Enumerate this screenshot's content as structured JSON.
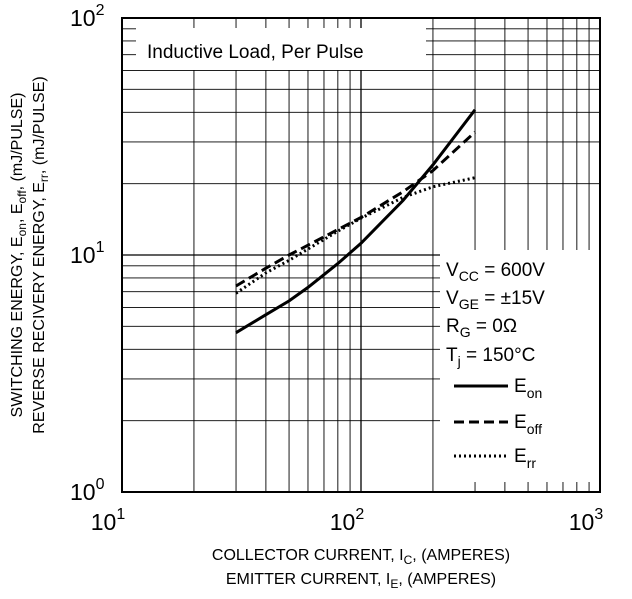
{
  "chart_data": {
    "type": "line",
    "xscale": "log",
    "yscale": "log",
    "xlim": [
      10,
      1000
    ],
    "ylim": [
      1,
      100
    ],
    "grid": true,
    "x_ticks": [
      {
        "base": "10",
        "exp": "1"
      },
      {
        "base": "10",
        "exp": "2"
      },
      {
        "base": "10",
        "exp": "3"
      }
    ],
    "y_ticks": [
      {
        "base": "10",
        "exp": "0"
      },
      {
        "base": "10",
        "exp": "1"
      },
      {
        "base": "10",
        "exp": "2"
      }
    ],
    "xlabel": {
      "line1": {
        "pre": "COLLECTOR CURRENT, I",
        "sub": "C",
        "post": ", (AMPERES)"
      },
      "line2": {
        "pre": "EMITTER CURRENT, I",
        "sub": "E",
        "post": ", (AMPERES)"
      }
    },
    "ylabel": {
      "line1": {
        "pre": "SWITCHING ENERGY, E",
        "sub1": "on",
        "mid": ", E",
        "sub2": "off",
        "post": ", (mJ/PULSE)"
      },
      "line2": {
        "pre": "REVERSE RECIVERY ENERGY, E",
        "sub1": "rr",
        "post": ", (mJ/PULSE)"
      }
    },
    "annotation": "Inductive Load, Per Pulse",
    "conditions": [
      {
        "main": "V",
        "sub": "CC",
        "rest": " = 600V"
      },
      {
        "main": "V",
        "sub": "GE",
        "rest": " = ±15V"
      },
      {
        "main": "R",
        "sub": "G",
        "rest": " = 0Ω"
      },
      {
        "main": "T",
        "sub": "j",
        "rest": " = 150°C"
      }
    ],
    "legend_position": "right",
    "series": [
      {
        "name": {
          "main": "E",
          "sub": "on"
        },
        "style": "solid",
        "x": [
          30,
          40,
          50,
          60,
          80,
          100,
          150,
          200,
          300
        ],
        "y": [
          4.7,
          5.6,
          6.4,
          7.3,
          9.2,
          11.2,
          17.0,
          24.0,
          41.0
        ]
      },
      {
        "name": {
          "main": "E",
          "sub": "off"
        },
        "style": "dashed",
        "x": [
          30,
          40,
          50,
          60,
          80,
          100,
          150,
          200,
          300
        ],
        "y": [
          7.4,
          8.8,
          10.0,
          11.0,
          12.8,
          14.4,
          18.5,
          22.7,
          33.0
        ]
      },
      {
        "name": {
          "main": "E",
          "sub": "rr"
        },
        "style": "dotted",
        "x": [
          30,
          40,
          50,
          60,
          80,
          100,
          150,
          200,
          300
        ],
        "y": [
          6.9,
          8.4,
          9.5,
          10.6,
          12.6,
          14.3,
          17.5,
          19.4,
          21.2
        ]
      }
    ]
  }
}
